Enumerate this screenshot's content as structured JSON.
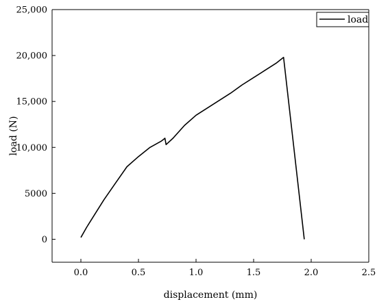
{
  "chart_data": {
    "type": "line",
    "title": "",
    "xlabel": "displacement (mm)",
    "ylabel": "load (N)",
    "xlim": [
      -0.25,
      2.5
    ],
    "ylim": [
      -2500,
      25000
    ],
    "xticks": [
      0.0,
      0.5,
      1.0,
      1.5,
      2.0,
      2.5
    ],
    "xtick_labels": [
      "0.0",
      "0.5",
      "1.0",
      "1.5",
      "2.0",
      "2.5"
    ],
    "yticks": [
      0,
      5000,
      10000,
      15000,
      20000,
      25000
    ],
    "ytick_labels": [
      "0",
      "5000",
      "10,000",
      "15,000",
      "20,000",
      "25,000"
    ],
    "grid": false,
    "legend_position": "top-right",
    "series": [
      {
        "name": "load",
        "color": "#000000",
        "x": [
          0.0,
          0.05,
          0.1,
          0.2,
          0.3,
          0.4,
          0.5,
          0.6,
          0.7,
          0.72,
          0.73,
          0.74,
          0.8,
          0.9,
          1.0,
          1.1,
          1.2,
          1.3,
          1.4,
          1.5,
          1.6,
          1.7,
          1.76,
          1.94
        ],
        "y": [
          200,
          1300,
          2300,
          4300,
          6100,
          7900,
          9000,
          10000,
          10700,
          10900,
          11000,
          10300,
          11000,
          12400,
          13500,
          14300,
          15100,
          15900,
          16800,
          17600,
          18400,
          19200,
          19800,
          0
        ]
      }
    ]
  }
}
